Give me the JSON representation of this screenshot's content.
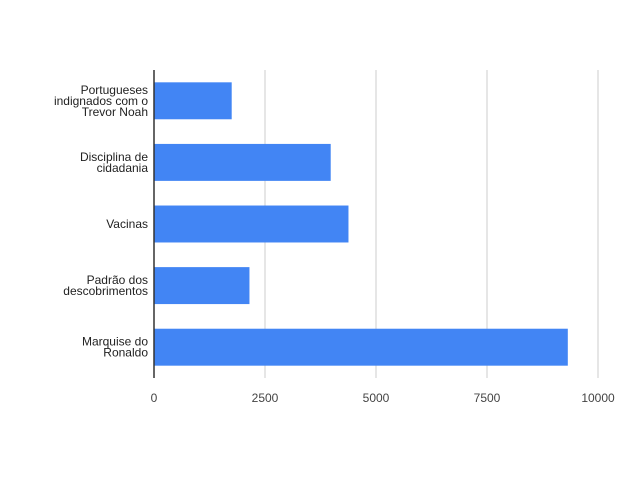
{
  "chart_data": {
    "type": "bar",
    "orientation": "horizontal",
    "categories": [
      "Portugueses indignados com o Trevor Noah",
      "Disciplina de cidadania",
      "Vacinas",
      "Padrão dos descobrimentos",
      "Marquise do Ronaldo"
    ],
    "values": [
      1750,
      3980,
      4380,
      2150,
      9320
    ],
    "xlim": [
      0,
      10000
    ],
    "xticks": [
      "0",
      "2500",
      "5000",
      "7500",
      "10000"
    ],
    "title": "",
    "xlabel": "",
    "ylabel": "",
    "grid": "vertical",
    "legend": "none",
    "colors": {
      "bar": "#4285f4",
      "grid": "#cccccc",
      "axis": "#333333"
    }
  }
}
